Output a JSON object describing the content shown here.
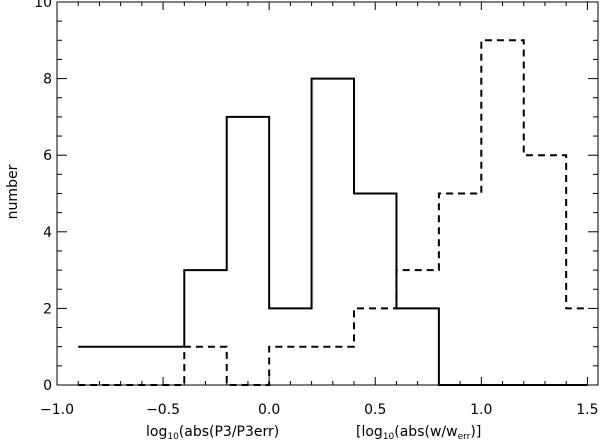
{
  "chart_data": {
    "type": "histogram",
    "ylabel": "number",
    "xlabel_parts": {
      "left": {
        "pre": "log",
        "sub": "10",
        "post": "(abs(P3/P3err)"
      },
      "right": {
        "pre": "[log",
        "sub": "10",
        "mid": "(abs(w/w",
        "sub2": "err",
        "post": ")]"
      }
    },
    "xlim": [
      -1.0,
      1.55
    ],
    "ylim": [
      0,
      10
    ],
    "x_ticks": [
      {
        "value": -1.0,
        "label": "−1.0"
      },
      {
        "value": -0.5,
        "label": "−0.5"
      },
      {
        "value": 0.0,
        "label": "0.0"
      },
      {
        "value": 0.5,
        "label": "0.5"
      },
      {
        "value": 1.0,
        "label": "1.0"
      },
      {
        "value": 1.5,
        "label": "1.5"
      }
    ],
    "y_ticks": [
      {
        "value": 0,
        "label": "0"
      },
      {
        "value": 2,
        "label": "2"
      },
      {
        "value": 4,
        "label": "4"
      },
      {
        "value": 6,
        "label": "6"
      },
      {
        "value": 8,
        "label": "8"
      },
      {
        "value": 10,
        "label": "10"
      }
    ],
    "series": [
      {
        "style": "solid",
        "bins": [
          {
            "x0": -0.9,
            "x1": -0.4,
            "count": 1
          },
          {
            "x0": -0.4,
            "x1": -0.2,
            "count": 3
          },
          {
            "x0": -0.2,
            "x1": 0.0,
            "count": 7
          },
          {
            "x0": 0.0,
            "x1": 0.2,
            "count": 2
          },
          {
            "x0": 0.2,
            "x1": 0.4,
            "count": 8
          },
          {
            "x0": 0.4,
            "x1": 0.6,
            "count": 5
          },
          {
            "x0": 0.6,
            "x1": 0.8,
            "count": 2
          },
          {
            "x0": 0.8,
            "x1": 1.5,
            "count": 0
          }
        ]
      },
      {
        "style": "dashed",
        "bins": [
          {
            "x0": -0.9,
            "x1": -0.4,
            "count": 0
          },
          {
            "x0": -0.4,
            "x1": -0.2,
            "count": 1
          },
          {
            "x0": -0.2,
            "x1": 0.0,
            "count": 0
          },
          {
            "x0": 0.0,
            "x1": 0.4,
            "count": 1
          },
          {
            "x0": 0.4,
            "x1": 0.6,
            "count": 2
          },
          {
            "x0": 0.6,
            "x1": 0.8,
            "count": 3
          },
          {
            "x0": 0.8,
            "x1": 1.0,
            "count": 5
          },
          {
            "x0": 1.0,
            "x1": 1.2,
            "count": 9
          },
          {
            "x0": 1.2,
            "x1": 1.4,
            "count": 6
          },
          {
            "x0": 1.4,
            "x1": 1.5,
            "count": 2
          }
        ]
      }
    ]
  }
}
